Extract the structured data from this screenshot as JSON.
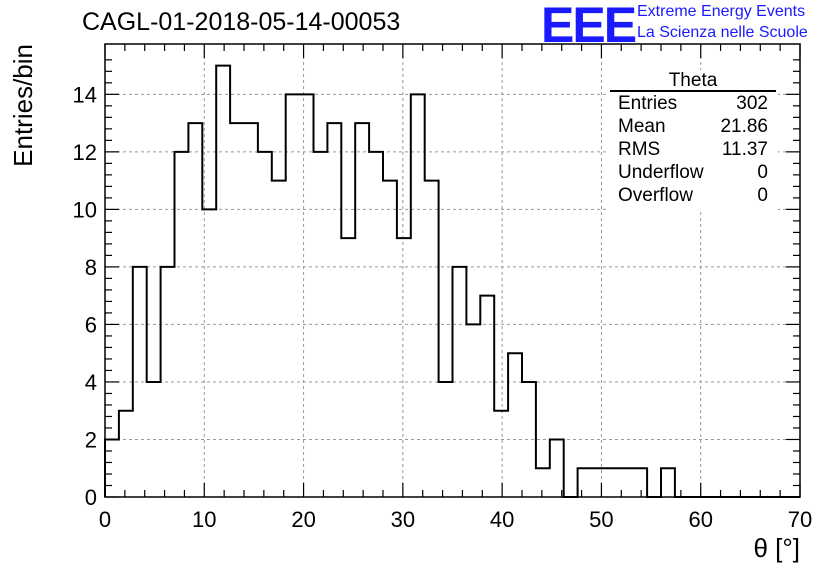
{
  "title": "CAGL-01-2018-05-14-00053",
  "logo": {
    "text": "EEE",
    "line1": "Extreme Energy Events",
    "line2": "La Scienza nelle Scuole",
    "color": "#1a1aff"
  },
  "stats": {
    "title": "Theta",
    "rows": [
      {
        "key": "Entries",
        "value": "302"
      },
      {
        "key": "Mean",
        "value": "21.86"
      },
      {
        "key": "RMS",
        "value": "11.37"
      },
      {
        "key": "Underflow",
        "value": "0"
      },
      {
        "key": "Overflow",
        "value": "0"
      }
    ]
  },
  "chart_data": {
    "type": "bar",
    "histogram": true,
    "xlabel": "θ [°]",
    "ylabel": "Entries/bin",
    "xlim": [
      0,
      70
    ],
    "ylim": [
      0,
      15.75
    ],
    "grid": true,
    "bin_width": 1.4,
    "x_ticks": [
      0,
      10,
      20,
      30,
      40,
      50,
      60,
      70
    ],
    "y_ticks": [
      0,
      2,
      4,
      6,
      8,
      10,
      12,
      14
    ],
    "values": [
      2,
      3,
      8,
      4,
      8,
      12,
      13,
      10,
      15,
      13,
      13,
      12,
      11,
      14,
      14,
      12,
      13,
      9,
      13,
      12,
      11,
      9,
      14,
      11,
      4,
      8,
      6,
      7,
      3,
      5,
      4,
      1,
      2,
      0,
      1,
      1,
      1,
      1,
      1,
      0,
      1,
      0,
      0,
      0,
      0,
      0,
      0,
      0,
      0,
      0
    ]
  }
}
